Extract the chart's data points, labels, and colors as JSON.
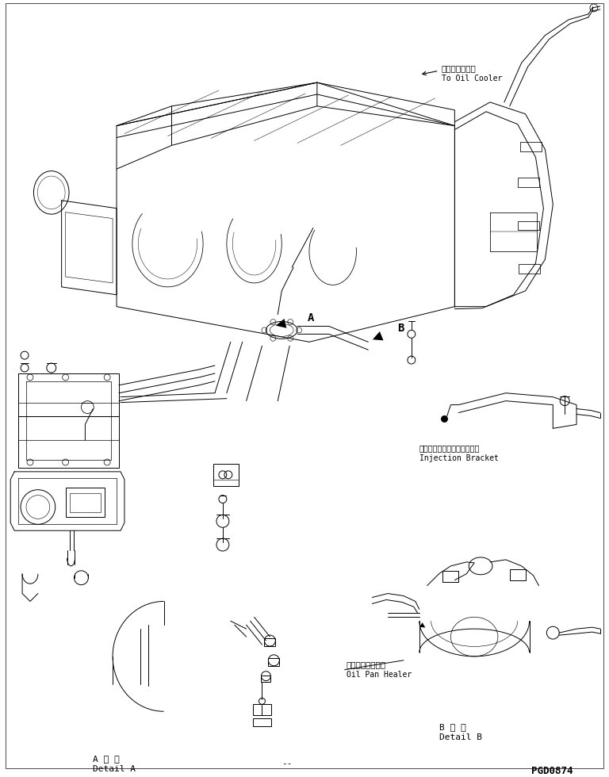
{
  "background_color": "#ffffff",
  "line_color": "#000000",
  "labels": {
    "oil_cooler_jp": "オイルクーラヘ",
    "oil_cooler_en": "To Oil Cooler",
    "injection_bracket_jp": "インジェクションブラケット",
    "injection_bracket_en": "Injection Bracket",
    "oil_pan_healer_jp": "オイルパンヒータ",
    "oil_pan_healer_en": "Oil Pan Healer",
    "detail_a_jp": "A 詳 細",
    "detail_a_en": "Detail A",
    "detail_b_jp": "B 詳 細",
    "detail_b_en": "Detail B",
    "label_a": "A",
    "label_b": "B",
    "page_code": "PGD0874",
    "dashes": "--"
  },
  "font_size": 7,
  "font_family": "DejaVu Sans Mono"
}
